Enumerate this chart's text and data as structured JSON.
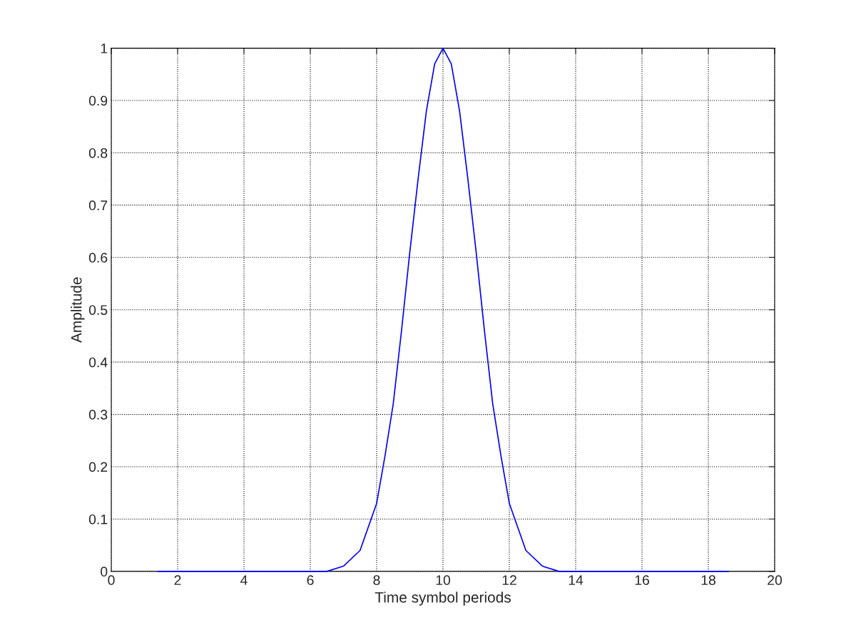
{
  "chart_data": {
    "type": "line",
    "xlabel": "Time symbol periods",
    "ylabel": "Amplitude",
    "series": [
      {
        "color": "#0000ff",
        "x": [
          1.4,
          2,
          3,
          4,
          5,
          6,
          6.5,
          7,
          7.5,
          8,
          8.25,
          8.5,
          8.75,
          9,
          9.25,
          9.5,
          9.75,
          10,
          10.25,
          10.5,
          10.75,
          11,
          11.25,
          11.5,
          11.75,
          12,
          12.5,
          13,
          13.5,
          14,
          15,
          16,
          17,
          18,
          18.6
        ],
        "values": [
          0,
          0,
          0,
          0,
          0,
          0,
          0,
          0.01,
          0.04,
          0.13,
          0.22,
          0.32,
          0.46,
          0.61,
          0.75,
          0.88,
          0.97,
          1,
          0.97,
          0.88,
          0.75,
          0.61,
          0.46,
          0.32,
          0.22,
          0.13,
          0.04,
          0.01,
          0,
          0,
          0,
          0,
          0,
          0,
          0
        ]
      }
    ],
    "xlim": [
      0,
      20
    ],
    "xticks": [
      0,
      2,
      4,
      6,
      8,
      10,
      12,
      14,
      16,
      18,
      20
    ],
    "ylim": [
      0,
      1
    ],
    "yticks": [
      0,
      0.1,
      0.2,
      0.3,
      0.4,
      0.5,
      0.6,
      0.7,
      0.8,
      0.9,
      1
    ],
    "grid": true,
    "line_style": "solid"
  }
}
